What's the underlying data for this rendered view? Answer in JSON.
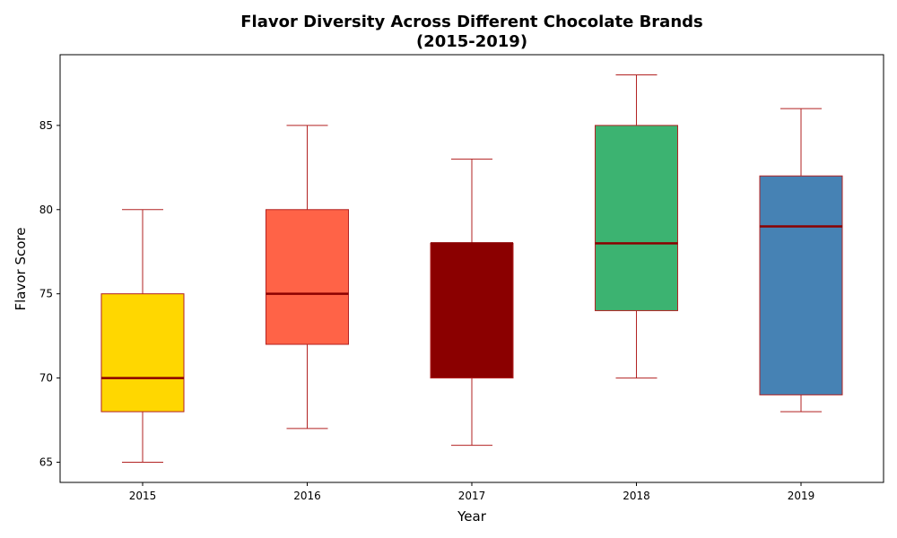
{
  "chart_data": {
    "type": "box",
    "title_line1": "Flavor Diversity Across Different Chocolate Brands",
    "title_line2": "(2015-2019)",
    "xlabel": "Year",
    "ylabel": "Flavor Score",
    "ylim": [
      63.8,
      89.2
    ],
    "yticks": [
      65,
      70,
      75,
      80,
      85
    ],
    "grid": false,
    "categories": [
      "2015",
      "2016",
      "2017",
      "2018",
      "2019"
    ],
    "boxes": [
      {
        "category": "2015",
        "min": 65,
        "q1": 68,
        "median": 70,
        "q3": 75,
        "max": 80,
        "color": "#FFD700"
      },
      {
        "category": "2016",
        "min": 67,
        "q1": 72,
        "median": 75,
        "q3": 80,
        "max": 85,
        "color": "#FF6347"
      },
      {
        "category": "2017",
        "min": 66,
        "q1": 70,
        "median": 78,
        "q3": 78,
        "max": 83,
        "color": "#8B0000"
      },
      {
        "category": "2018",
        "min": 70,
        "q1": 74,
        "median": 78,
        "q3": 85,
        "max": 88,
        "color": "#3CB371"
      },
      {
        "category": "2019",
        "min": 68,
        "q1": 69,
        "median": 79,
        "q3": 82,
        "max": 86,
        "color": "#4682B4"
      }
    ],
    "box_edge_color": "#B22222",
    "whisker_color": "#B22222",
    "median_color": "#8B0000"
  }
}
